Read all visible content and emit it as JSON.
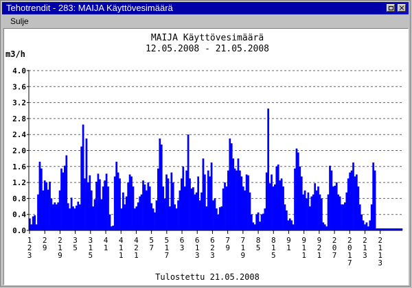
{
  "window": {
    "title": "Tehotrendit - 283: MAIJA Käyttövesimäärä",
    "icons": [
      "restore-icon",
      "close-icon"
    ]
  },
  "menu": {
    "items": [
      "Sulje"
    ]
  },
  "colors": {
    "bars": "#0000ff",
    "titlebar": "#0000a8",
    "grid": "#606060"
  },
  "chart_data": {
    "type": "bar",
    "title": "MAIJA Käyttövesimäärä",
    "subtitle": "12.05.2008  -  21.05.2008",
    "ylabel": "m3/h",
    "footer": "Tulostettu 21.05.2008",
    "ylim": [
      0,
      4.0
    ],
    "yticks": [
      "0.0",
      "0.4",
      "0.8",
      "1.2",
      "1.6",
      "2.0",
      "2.4",
      "2.8",
      "3.2",
      "3.6",
      "4.0"
    ],
    "grid": "horizontal dashed",
    "xticks": [
      [
        "1",
        "2",
        "3"
      ],
      [
        "2",
        "9"
      ],
      [
        "2",
        "1",
        "9"
      ],
      [
        "3",
        "5"
      ],
      [
        "3",
        "1",
        "5"
      ],
      [
        "4",
        "1"
      ],
      [
        "4",
        "1",
        "1"
      ],
      [
        "4",
        "2",
        "1"
      ],
      [
        "5",
        "7"
      ],
      [
        "5",
        "1",
        "7"
      ],
      [
        "6",
        "3"
      ],
      [
        "6",
        "1",
        "3"
      ],
      [
        "6",
        "2",
        "3"
      ],
      [
        "7",
        "9"
      ],
      [
        "7",
        "1",
        "9"
      ],
      [
        "8",
        "5"
      ],
      [
        "8",
        "1",
        "5"
      ],
      [
        "9",
        "1"
      ],
      [
        "9",
        "1",
        "1"
      ],
      [
        "9",
        "2",
        "1"
      ],
      [
        "2",
        "0",
        "7"
      ],
      [
        "2",
        "0",
        "1",
        "7"
      ],
      [
        "2",
        "1",
        "3"
      ],
      [
        "2",
        "1",
        "1",
        "3"
      ]
    ],
    "series": [
      {
        "values": [
          0.3,
          0.15,
          0.35,
          0.38,
          0.15,
          0.9,
          1.72,
          1.55,
          1.0,
          1.25,
          1.2,
          1.02,
          1.22,
          0.8,
          0.65,
          0.7,
          0.65,
          0.7,
          1.0,
          1.55,
          1.45,
          1.62,
          1.88,
          0.68,
          0.55,
          0.82,
          0.6,
          0.55,
          0.62,
          0.72,
          0.65,
          2.1,
          2.65,
          1.3,
          2.3,
          1.2,
          1.38,
          1.0,
          0.6,
          0.78,
          1.22,
          1.42,
          1.28,
          0.78,
          1.1,
          1.25,
          1.42,
          1.1,
          0.4,
          0.1,
          0.12,
          1.35,
          1.72,
          1.45,
          1.3,
          0.55,
          0.95,
          0.65,
          0.85,
          1.2,
          1.4,
          1.35,
          1.1,
          0.55,
          0.6,
          0.7,
          0.85,
          0.9,
          1.25,
          1.15,
          1.0,
          1.2,
          1.1,
          0.68,
          0.55,
          0.45,
          0.75,
          1.55,
          2.3,
          2.15,
          1.1,
          0.8,
          1.4,
          1.3,
          0.6,
          1.45,
          1.2,
          0.65,
          0.55,
          0.75,
          1.0,
          1.3,
          1.6,
          1.1,
          1.5,
          2.4,
          1.3,
          1.05,
          1.08,
          0.9,
          0.95,
          1.35,
          0.75,
          0.95,
          1.8,
          1.4,
          0.6,
          1.5,
          1.35,
          1.7,
          0.75,
          0.8,
          0.55,
          0.4,
          0.58,
          0.6,
          1.05,
          1.2,
          1.1,
          1.5,
          2.3,
          2.18,
          1.8,
          1.55,
          1.5,
          1.8,
          1.5,
          1.35,
          1.1,
          1.0,
          1.4,
          1.38,
          0.95,
          0.4,
          0.2,
          0.15,
          0.4,
          0.45,
          0.22,
          0.4,
          0.42,
          0.55,
          1.45,
          3.05,
          1.18,
          1.4,
          1.1,
          1.15,
          1.6,
          1.65,
          1.25,
          1.3,
          1.1,
          0.65,
          0.5,
          0.25,
          0.3,
          0.25,
          0.15,
          1.55,
          2.05,
          1.95,
          1.6,
          1.35,
          0.9,
          1.0,
          0.8,
          0.95,
          0.6,
          0.85,
          0.9,
          1.18,
          1.0,
          1.1,
          0.9,
          0.8,
          0.2,
          0.15,
          0.1,
          0.9,
          1.62,
          1.5,
          1.1,
          1.12,
          1.2,
          0.9,
          0.85,
          0.65,
          0.65,
          0.7,
          0.95,
          1.3,
          1.45,
          1.5,
          1.7,
          1.35,
          1.4,
          1.1,
          0.65,
          0.4,
          0.25,
          0.15,
          0.2,
          0.1,
          0.25,
          0.65,
          1.7,
          1.5,
          0.05,
          0.05,
          0.05,
          0.05,
          0.05,
          0.05,
          0.05,
          0.05,
          0.05,
          0.05,
          0.05,
          0.05,
          0.05,
          0.05,
          0.05,
          0.05
        ]
      }
    ]
  }
}
